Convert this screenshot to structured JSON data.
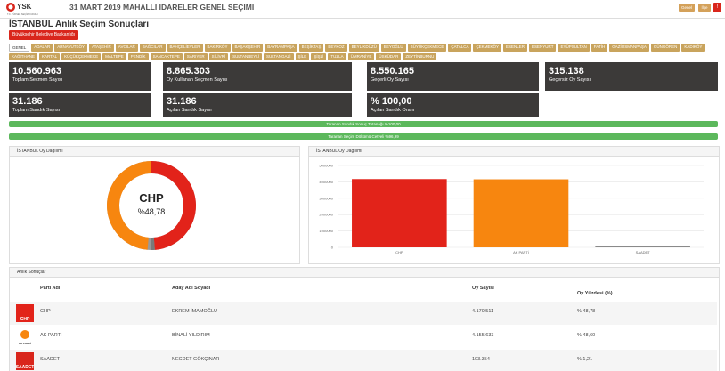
{
  "header": {
    "logo": "YSK",
    "logo_subtitle": "T.C. YÜKSEK SEÇİM KURULU",
    "election": "31 MART 2019 MAHALLİ İDARELER GENEL SEÇİMİ",
    "buttons": [
      "Genel",
      "İlçe",
      "!"
    ]
  },
  "page": {
    "title": "İSTANBUL Anlık Seçim Sonuçları",
    "office_button": "Büyükşehir Belediye Başkanlığı",
    "districts": [
      "GENEL",
      "ADALAR",
      "ARNAVUTKÖY",
      "ATAŞEHİR",
      "AVCILAR",
      "BAĞCILAR",
      "BAHÇELİEVLER",
      "BAKIRKÖY",
      "BAŞAKŞEHİR",
      "BAYRAMPAŞA",
      "BEŞİKTAŞ",
      "BEYKOZ",
      "BEYLİKDÜZÜ",
      "BEYOĞLU",
      "BÜYÜKÇEKMECE",
      "ÇATALCA",
      "ÇEKMEKÖY",
      "ESENLER",
      "ESENYURT",
      "EYÜPSULTAN",
      "FATİH",
      "GAZİOSMANPAŞA",
      "GÜNGÖREN",
      "KADIKÖY",
      "KAĞITHANE",
      "KARTAL",
      "KÜÇÜKÇEKMECE",
      "MALTEPE",
      "PENDİK",
      "SANCAKTEPE",
      "SARIYER",
      "SİLİVRİ",
      "SULTANBEYLİ",
      "SULTANGAZİ",
      "ŞİLE",
      "ŞİŞLİ",
      "TUZLA",
      "ÜMRANİYE",
      "ÜSKÜDAR",
      "ZEYTİNBURNU"
    ]
  },
  "stats": [
    {
      "value": "10.560.963",
      "label": "Toplam Seçmen Sayısı"
    },
    {
      "value": "8.865.303",
      "label": "Oy Kullanan Seçmen Sayısı"
    },
    {
      "value": "8.550.165",
      "label": "Geçerli Oy Sayısı"
    },
    {
      "value": "315.138",
      "label": "Geçersiz Oy Sayısı"
    },
    {
      "value": "31.186",
      "label": "Toplam Sandık Sayısı"
    },
    {
      "value": "31.186",
      "label": "Açılan Sandık Sayısı"
    },
    {
      "value": "% 100,00",
      "label": "Açılan Sandık Oranı"
    }
  ],
  "progress": [
    "Taranan Sandık Sonuç Tutanağı %100,00",
    "Taranan Seçim Dökümü Cetveli %96,99"
  ],
  "chart_data": [
    {
      "type": "pie",
      "title": "İSTANBUL Oy Dağılımı",
      "center_label": "CHP",
      "center_value": "%48,78",
      "values": [
        48.78,
        48.6,
        1.21
      ],
      "colors": [
        "#e2231a",
        "#f7860f",
        "#7a7a7a"
      ]
    },
    {
      "type": "bar",
      "title": "İSTANBUL Oy Dağılımı",
      "categories": [
        "CHP",
        "AK PARTİ",
        "SAADET"
      ],
      "values": [
        4170511,
        4155633,
        103354
      ],
      "colors": [
        "#e2231a",
        "#f7860f",
        "#8a8a8a"
      ],
      "ylim": [
        0,
        5000000
      ],
      "yticks": [
        0,
        1000000,
        2000000,
        3000000,
        4000000,
        5000000
      ],
      "grid": true
    }
  ],
  "results": {
    "title": "Anlık Sonuçlar",
    "columns": [
      "Parti Adı",
      "Aday Adı Soyadı",
      "Oy Sayısı",
      "Oy Yüzdesi (%)"
    ],
    "rows": [
      [
        "CHP",
        "EKREM İMAMOĞLU",
        "4.170.511",
        "% 48,78"
      ],
      [
        "AK PARTİ",
        "BİNALİ YILDIRIM",
        "4.155.633",
        "% 48,60"
      ],
      [
        "SAADET",
        "NECDET GÖKÇINAR",
        "103.354",
        "% 1,21"
      ]
    ]
  }
}
